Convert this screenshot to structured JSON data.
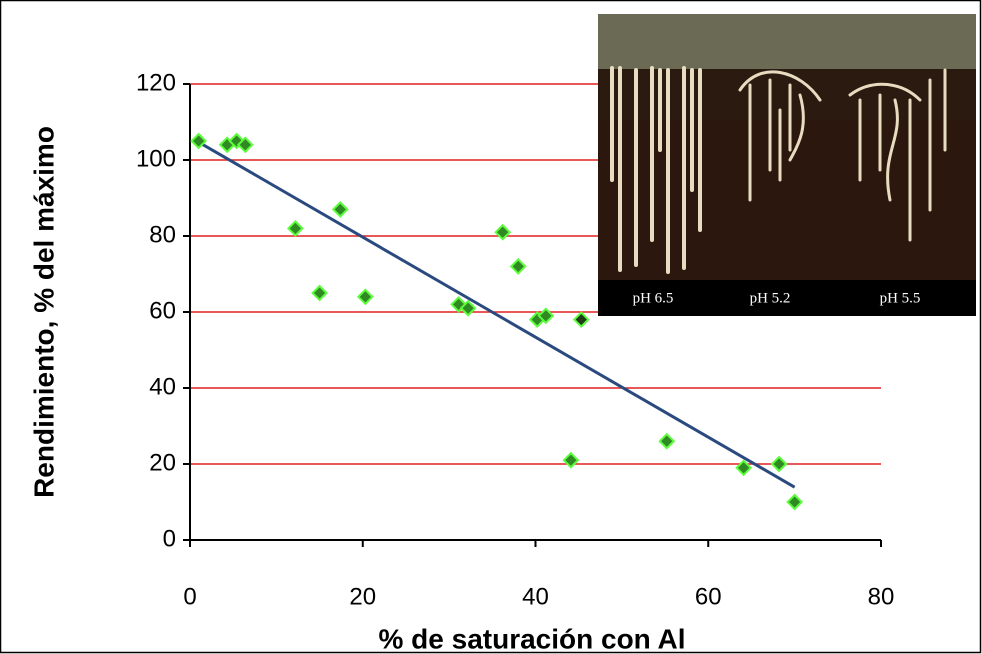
{
  "chart_data": {
    "type": "scatter",
    "x_label": "% de saturación con Al",
    "y_label": "Rendimiento, % del máximo",
    "series": [
      {
        "color": "#2f8a24",
        "x": [
          1.0,
          4.3,
          5.4,
          6.4,
          12.2,
          15,
          17.4,
          20.3,
          31.1,
          32.2,
          36.2,
          38,
          40.2,
          41.2,
          44.1,
          55.2,
          64.1,
          68.2,
          70
        ],
        "values": [
          105,
          104,
          105,
          104,
          82,
          65,
          87,
          64,
          62,
          61,
          81,
          72,
          58,
          59,
          21,
          26,
          19,
          20,
          10
        ]
      },
      {
        "color": "#1f3d16",
        "x": [
          45.3
        ],
        "values": [
          58
        ]
      }
    ],
    "marker_edge_color": "#5dfc3c",
    "trendline": {
      "color": "#2a4a7f",
      "x": [
        1,
        70
      ],
      "values": [
        104.7,
        13.9
      ]
    },
    "xlim": [
      0,
      80
    ],
    "xticks": [
      0,
      20,
      40,
      60,
      80
    ],
    "ylim": [
      0,
      120
    ],
    "yticks": [
      0,
      20,
      40,
      60,
      80,
      100,
      120
    ],
    "grid": true,
    "grid_color": "#e02020"
  },
  "inset": {
    "labels": [
      "pH 6.5",
      "pH 5.2",
      "pH 5.5"
    ]
  }
}
